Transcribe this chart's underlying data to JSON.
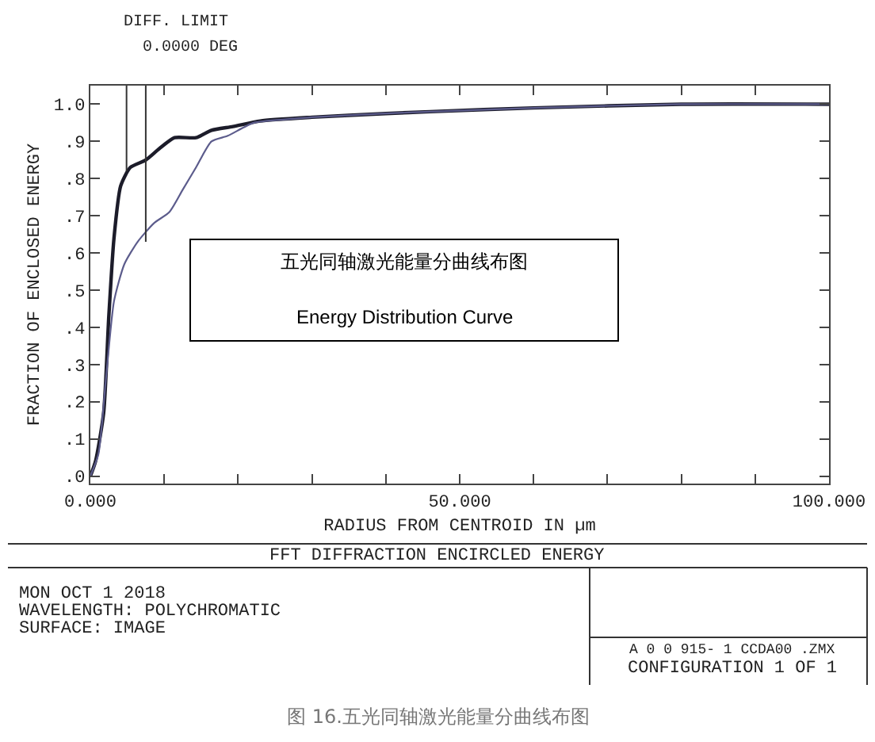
{
  "chart_data": {
    "type": "line",
    "title": "五光同轴激光能量分曲线布图",
    "subtitle": "Energy Distribution Curve",
    "xlabel": "RADIUS FROM CENTROID IN µm",
    "ylabel": "FRACTION OF ENCLOSED ENERGY",
    "xlim": [
      0,
      100
    ],
    "ylim": [
      -0.02,
      1.05
    ],
    "xticks": [
      {
        "value": 0,
        "label": "0.000"
      },
      {
        "value": 10,
        "label": null
      },
      {
        "value": 20,
        "label": null
      },
      {
        "value": 30,
        "label": null
      },
      {
        "value": 40,
        "label": null
      },
      {
        "value": 50,
        "label": "50.000"
      },
      {
        "value": 60,
        "label": null
      },
      {
        "value": 70,
        "label": null
      },
      {
        "value": 80,
        "label": null
      },
      {
        "value": 90,
        "label": null
      },
      {
        "value": 100,
        "label": "100.000"
      }
    ],
    "yticks": [
      {
        "value": 0,
        "label": ".0"
      },
      {
        "value": 0.1,
        "label": ".1"
      },
      {
        "value": 0.2,
        "label": ".2"
      },
      {
        "value": 0.3,
        "label": ".3"
      },
      {
        "value": 0.4,
        "label": ".4"
      },
      {
        "value": 0.5,
        "label": ".5"
      },
      {
        "value": 0.6,
        "label": ".6"
      },
      {
        "value": 0.7,
        "label": ".7"
      },
      {
        "value": 0.8,
        "label": ".8"
      },
      {
        "value": 0.9,
        "label": ".9"
      },
      {
        "value": 1.0,
        "label": "1.0"
      }
    ],
    "marker": "none",
    "line_style": "solid",
    "series": [
      {
        "color": "#1c1c2a",
        "x": [
          0,
          0.7,
          1.8,
          2.5,
          3.2,
          4.1,
          5.4,
          7.5,
          9.3,
          11.4,
          14.3,
          16.4,
          19.3,
          23,
          30,
          40,
          46,
          60,
          80,
          100
        ],
        "values": [
          0,
          0.04,
          0.17,
          0.43,
          0.64,
          0.78,
          0.83,
          0.85,
          0.88,
          0.91,
          0.91,
          0.93,
          0.94,
          0.955,
          0.965,
          0.975,
          0.98,
          0.99,
          1.0,
          1.0
        ]
      },
      {
        "color": "#5c5c8c",
        "x": [
          0,
          1.1,
          2.1,
          3.2,
          4.6,
          6.4,
          8.6,
          10.7,
          12.5,
          14.3,
          16.4,
          18.6,
          22.1,
          27,
          30,
          40,
          46,
          60,
          80,
          100
        ],
        "values": [
          0,
          0.06,
          0.26,
          0.47,
          0.57,
          0.63,
          0.68,
          0.71,
          0.77,
          0.83,
          0.9,
          0.915,
          0.95,
          0.96,
          0.965,
          0.975,
          0.98,
          0.99,
          1.0,
          1.0
        ]
      }
    ],
    "annotations": [
      {
        "text": "DIFF. LIMIT",
        "x": 4.9,
        "y": 0.82
      },
      {
        "text": "0.0000 DEG",
        "x": 7.5,
        "y": 0.63
      },
      "FFT DIFFRACTION ENCIRCLED ENERGY",
      "MON OCT 1 2018",
      "WAVELENGTH: POLYCHROMATIC",
      "SURFACE: IMAGE",
      "A 0 0 915- 1 CCDA00 .ZMX",
      "CONFIGURATION 1 OF 1",
      "图 16.五光同轴激光能量分曲线布图"
    ]
  }
}
